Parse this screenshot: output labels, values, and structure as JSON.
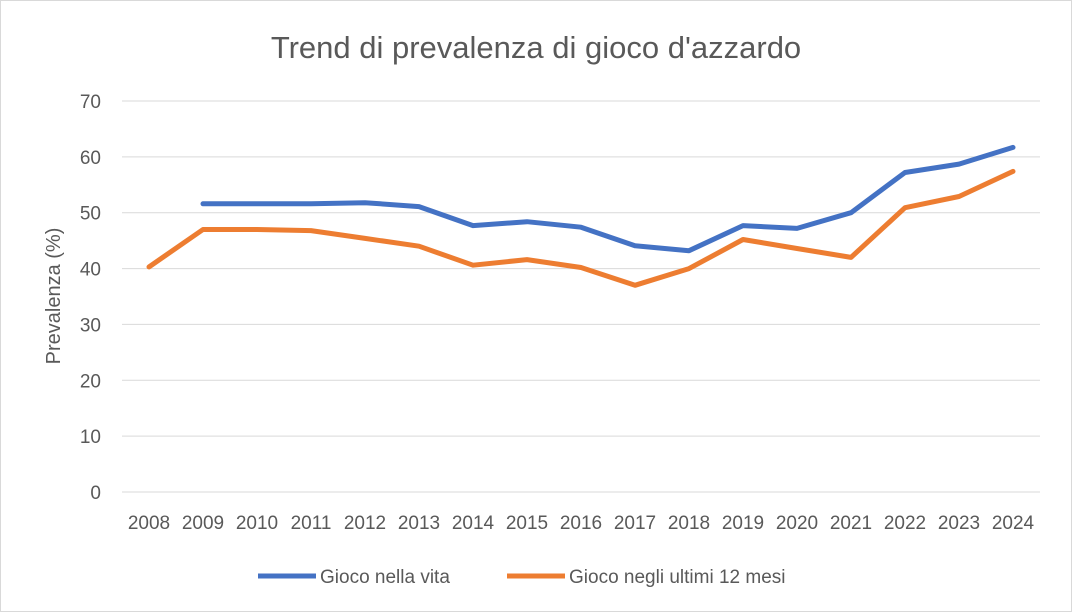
{
  "chart_data": {
    "type": "line",
    "title": "Trend di prevalenza di gioco d'azzardo",
    "xlabel": "",
    "ylabel": "Prevalenza (%)",
    "ylim": [
      0,
      70
    ],
    "yticks": [
      "0",
      "10",
      "20",
      "30",
      "40",
      "50",
      "60",
      "70"
    ],
    "grid": true,
    "legend_position": "bottom",
    "categories": [
      "2008",
      "2009",
      "2010",
      "2011",
      "2012",
      "2013",
      "2014",
      "2015",
      "2016",
      "2017",
      "2018",
      "2019",
      "2020",
      "2021",
      "2022",
      "2023",
      "2024"
    ],
    "series": [
      {
        "name": "Gioco nella vita",
        "color": "#4472C4",
        "values": [
          null,
          51.6,
          51.6,
          51.6,
          51.8,
          51.1,
          47.7,
          48.4,
          47.4,
          44.1,
          43.2,
          47.7,
          47.2,
          50.0,
          57.2,
          58.7,
          61.7
        ]
      },
      {
        "name": "Gioco negli ultimi 12 mesi",
        "color": "#ED7D31",
        "values": [
          40.3,
          47.0,
          47.0,
          46.8,
          45.4,
          44.0,
          40.6,
          41.6,
          40.2,
          37.0,
          40.0,
          45.2,
          43.6,
          42.0,
          50.9,
          52.9,
          57.4
        ]
      }
    ]
  }
}
